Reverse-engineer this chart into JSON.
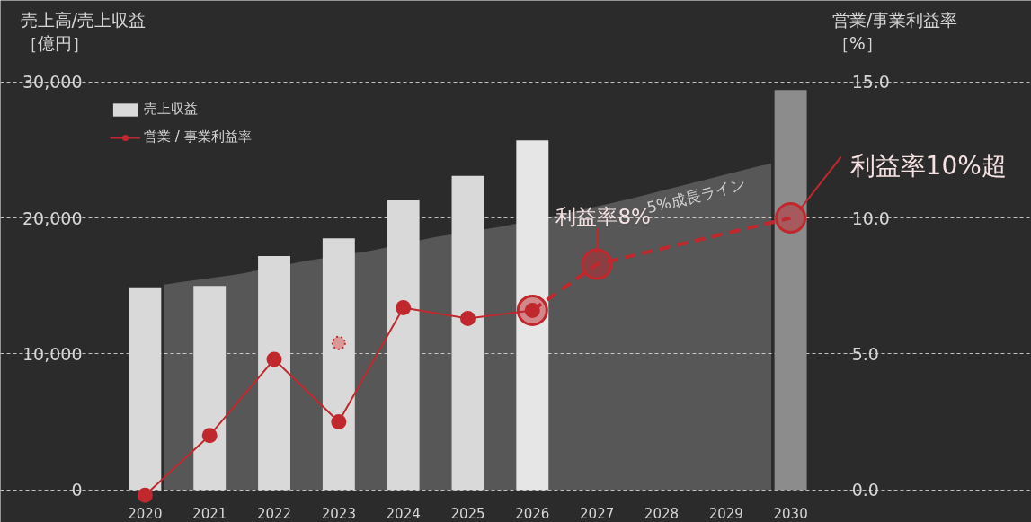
{
  "chart_data": {
    "type": "bar",
    "x": [
      2020,
      2021,
      2022,
      2023,
      2024,
      2025,
      2026,
      2027,
      2028,
      2029,
      2030
    ],
    "xlim": [
      2017.76,
      2033.73
    ],
    "xticks": [
      2020,
      2021,
      2022,
      2023,
      2024,
      2025,
      2026,
      2027,
      2028,
      2029,
      2030
    ],
    "ylabel": "売上高/売上収益［億円］",
    "y2label": "営業/事業利益率［%］",
    "ylim": [
      -2400,
      36000
    ],
    "yticks": [
      0,
      {
        "value": 10000,
        "label": "10,000"
      },
      {
        "value": 20000,
        "label": "20,000"
      },
      {
        "value": 30000,
        "label": "30,000"
      }
    ],
    "y2lim": [
      -1.2,
      18
    ],
    "y2ticks": [
      {
        "value": 0,
        "label": "0.0"
      },
      {
        "value": 5,
        "label": "5.0"
      },
      {
        "value": 10,
        "label": "10.0"
      },
      {
        "value": 15,
        "label": "15.0"
      }
    ],
    "grid": "y",
    "legend": "top left",
    "series": [
      {
        "name": "売上収益",
        "colors": [
          "#d9d9d9",
          "#d9d9d9",
          "#d9d9d9",
          "#d9d9d9",
          "#d9d9d9",
          "#d9d9d9",
          "#e6e6e6",
          null,
          null,
          null,
          "#8c8c8c"
        ],
        "values": [
          14900,
          15000,
          17200,
          18500,
          21300,
          23100,
          25700,
          null,
          null,
          null,
          29400
        ]
      },
      {
        "name": "5%成長ライン",
        "type": "area",
        "color": "#575757",
        "x": [
          2020.3,
          2020.5,
          2021.5,
          2022.5,
          2023.5,
          2024.5,
          2025.5,
          2026.5,
          2027.5,
          2028.5,
          2029.5,
          2029.7
        ],
        "values": [
          15100,
          15250,
          15900,
          16850,
          17600,
          18600,
          19350,
          20300,
          21400,
          22600,
          23800,
          24000
        ]
      },
      {
        "name": "営業 / 事業利益率",
        "type": "line",
        "axis": "y2",
        "color": "#c0282d",
        "marker": "circle",
        "line_style": "solid",
        "values": [
          -0.2,
          2.0,
          4.8,
          2.5,
          6.7,
          6.3,
          6.6,
          null,
          null,
          null,
          null
        ]
      },
      {
        "type": "line",
        "axis": "y2",
        "color": "#c0282d",
        "marker": "circle",
        "line_style": "dashed",
        "x": [
          2026,
          2027,
          2030
        ],
        "values": [
          6.6,
          8.3,
          10.0
        ]
      },
      {
        "type": "scatter",
        "axis": "y2",
        "color": "#d98c8c",
        "marker": "circle",
        "line_style": "dotted",
        "x": [
          2023
        ],
        "values": [
          5.4
        ]
      }
    ],
    "annotations": [
      {
        "text": "利益率8%",
        "x": 2027,
        "y": 16600
      },
      {
        "text": "利益率10%超",
        "x": 2030,
        "y": 20000
      }
    ]
  }
}
